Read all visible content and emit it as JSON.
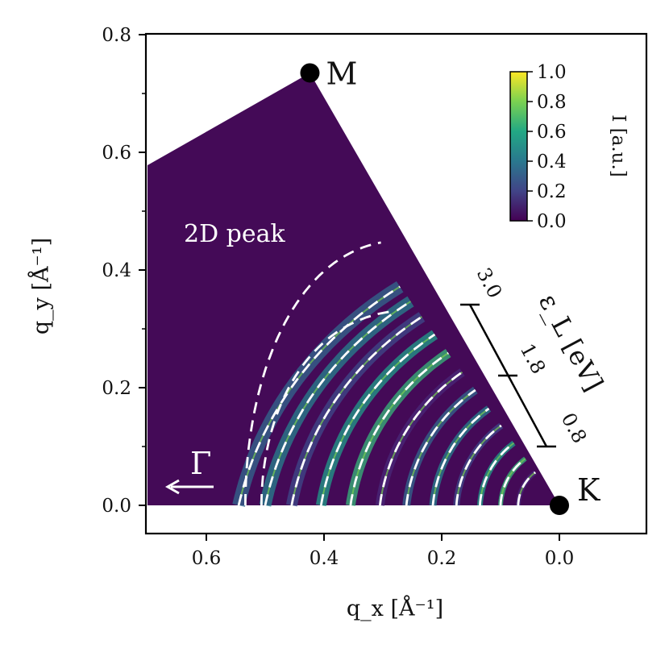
{
  "chart_data": {
    "type": "heatmap",
    "xlabel": "q_x [Å⁻¹]",
    "ylabel": "q_y [Å⁻¹]",
    "xlim": [
      0.7,
      -0.15
    ],
    "ylim": [
      -0.05,
      0.8
    ],
    "x_ticks": [
      "0.6",
      "0.4",
      "0.2",
      "0.0"
    ],
    "y_ticks": [
      "0.0",
      "0.2",
      "0.4",
      "0.6",
      "0.8"
    ],
    "high_symmetry_points": [
      {
        "label": "M",
        "qx": 0.424,
        "qy": 0.735
      },
      {
        "label": "K",
        "qx": 0.0,
        "qy": 0.0
      }
    ],
    "gamma_label": "Γ",
    "annotation": "2D peak",
    "colorbar": {
      "label": "I [a.u.]",
      "ticks": [
        "0.0",
        "0.2",
        "0.4",
        "0.6",
        "0.8",
        "1.0"
      ],
      "range": [
        0,
        1
      ],
      "colormap": "viridis"
    },
    "energy_scale": {
      "label": "ε_L [eV]",
      "ticks": [
        "3.0",
        "1.8",
        "0.8"
      ]
    },
    "contour_radii": [
      0.545,
      0.5,
      0.455,
      0.405,
      0.355,
      0.305,
      0.26,
      0.215,
      0.175,
      0.135,
      0.1,
      0.07
    ]
  },
  "colors": {
    "background": "#440a57",
    "dashed": "#ffffff",
    "markers": "#000000"
  }
}
